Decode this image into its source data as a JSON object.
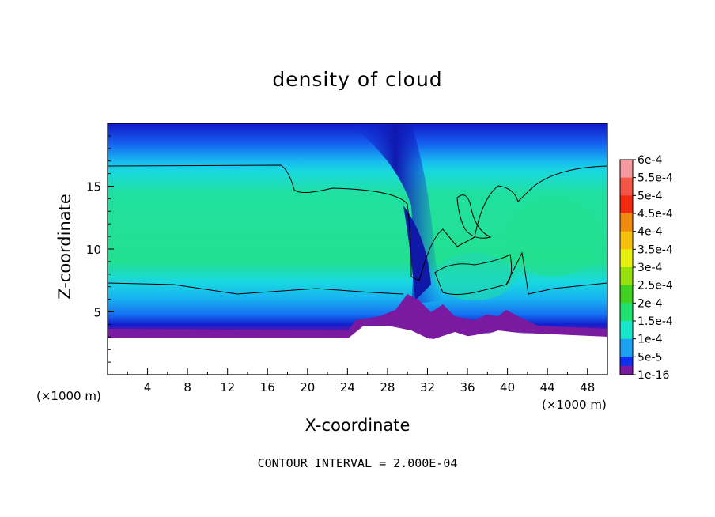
{
  "chart_data": {
    "type": "heatmap",
    "title": "density of cloud",
    "xlabel": "X-coordinate",
    "ylabel": "Z-coordinate",
    "x_unit": "(×1000 m)",
    "z_unit": "(×1000 m)",
    "xlim": [
      0,
      50
    ],
    "ylim": [
      0,
      20
    ],
    "x_ticks": [
      4,
      8,
      12,
      16,
      20,
      24,
      28,
      32,
      36,
      40,
      44,
      48
    ],
    "y_ticks": [
      5,
      10,
      15
    ],
    "colorbar": {
      "labels": [
        "6e-4",
        "5.5e-4",
        "5e-4",
        "4.5e-4",
        "4e-4",
        "3.5e-4",
        "3e-4",
        "2.5e-4",
        "2e-4",
        "1.5e-4",
        "1e-4",
        "5e-5",
        "1e-16"
      ],
      "colors": [
        "#f59aa0",
        "#f25545",
        "#ee2a10",
        "#f08a10",
        "#f5c010",
        "#e6f010",
        "#98e010",
        "#40d020",
        "#20e070",
        "#19e6c8",
        "#1da0f0",
        "#1030f0",
        "#1010a0"
      ],
      "bottom_color": "#7a1aa0"
    },
    "contour_interval": "CONTOUR INTERVAL = 2.000E-04"
  }
}
